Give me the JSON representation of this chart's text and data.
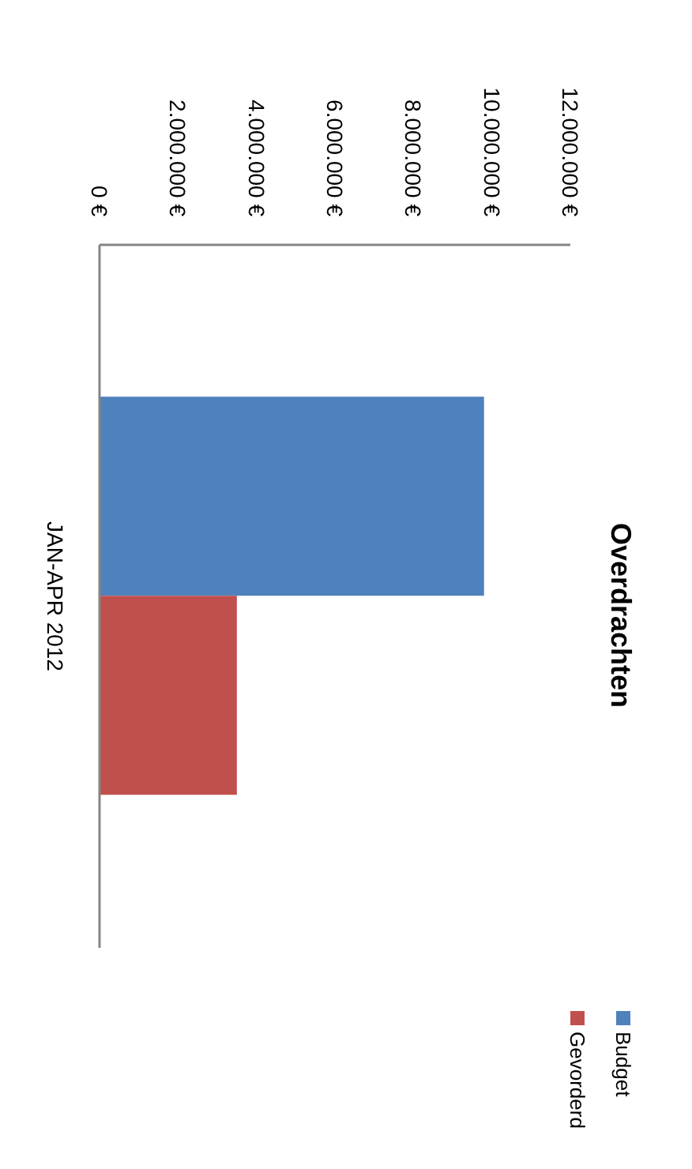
{
  "chart_data": {
    "type": "bar",
    "orientation": "horizontal",
    "title": "Overdrachten",
    "categories": [
      "JAN-APR 2012"
    ],
    "series": [
      {
        "name": "Budget",
        "color": "#4f81bd",
        "values": [
          9800000
        ]
      },
      {
        "name": "Gevorderd",
        "color": "#c0504d",
        "values": [
          3500000
        ]
      }
    ],
    "xlim": [
      0,
      12000000
    ],
    "xticks": [
      {
        "value": 0,
        "label": "0 €"
      },
      {
        "value": 2000000,
        "label": "2.000.000 €"
      },
      {
        "value": 4000000,
        "label": "4.000.000 €"
      },
      {
        "value": 6000000,
        "label": "6.000.000 €"
      },
      {
        "value": 8000000,
        "label": "8.000.000 €"
      },
      {
        "value": 10000000,
        "label": "10.000.000 €"
      },
      {
        "value": 12000000,
        "label": "12.000.000 €"
      }
    ],
    "grid": false,
    "legend": "bottom right"
  }
}
